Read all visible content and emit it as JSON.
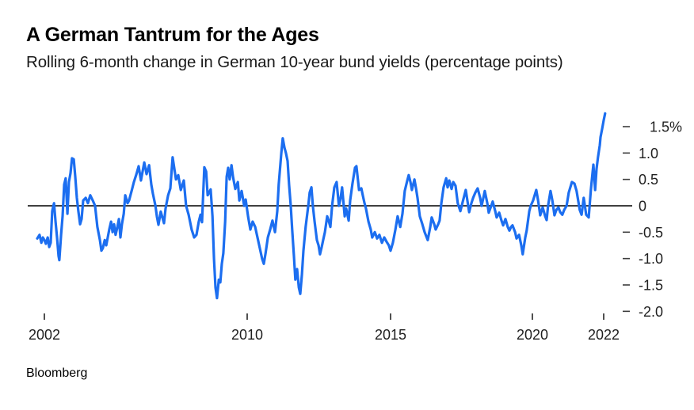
{
  "header": {
    "title": "A German Tantrum for the Ages",
    "subtitle": "Rolling 6-month change in German 10-year bund yields (percentage points)"
  },
  "source": {
    "label": "Bloomberg"
  },
  "chart_data": {
    "type": "line",
    "title": "A German Tantrum for the Ages",
    "subtitle": "Rolling 6-month change in German 10-year bund yields (percentage points)",
    "grid": false,
    "legend_position": "none",
    "zero_line": true,
    "line_color": "#1c6ef0",
    "zero_line_color": "#000000",
    "tick_color": "#3d3d3d",
    "x_axis": {
      "ticks": [
        2002,
        2010,
        2015,
        2020,
        2022
      ],
      "labels": [
        "2002",
        "2010",
        "2015",
        "2020",
        "2022"
      ],
      "range": [
        2001.7,
        2022.1
      ]
    },
    "y_axis": {
      "ticks": [
        1.5,
        1.0,
        0.5,
        0,
        -0.5,
        -1.0,
        -1.5,
        -2.0
      ],
      "labels": [
        "1.5%",
        "1.0",
        "0.5",
        "0",
        "-0.5",
        "-1.0",
        "-1.5",
        "-2.0"
      ],
      "range": [
        -2.0,
        1.75
      ],
      "unit": "percentage points"
    },
    "series": [
      {
        "name": "Rolling 6-month change in German 10-year bund yield",
        "points": [
          [
            2001.72,
            -0.62
          ],
          [
            2001.81,
            -0.55
          ],
          [
            2001.88,
            -0.7
          ],
          [
            2001.94,
            -0.6
          ],
          [
            2002.0,
            -0.65
          ],
          [
            2002.06,
            -0.72
          ],
          [
            2002.13,
            -0.6
          ],
          [
            2002.19,
            -0.78
          ],
          [
            2002.25,
            -0.7
          ],
          [
            2002.31,
            -0.1
          ],
          [
            2002.38,
            0.05
          ],
          [
            2002.44,
            -0.3
          ],
          [
            2002.5,
            -0.6
          ],
          [
            2002.56,
            -0.95
          ],
          [
            2002.59,
            -1.03
          ],
          [
            2002.66,
            -0.55
          ],
          [
            2002.72,
            -0.2
          ],
          [
            2002.78,
            0.4
          ],
          [
            2002.84,
            0.52
          ],
          [
            2002.91,
            -0.15
          ],
          [
            2002.97,
            0.45
          ],
          [
            2003.03,
            0.62
          ],
          [
            2003.09,
            0.9
          ],
          [
            2003.16,
            0.88
          ],
          [
            2003.22,
            0.55
          ],
          [
            2003.28,
            0.15
          ],
          [
            2003.34,
            -0.1
          ],
          [
            2003.41,
            -0.35
          ],
          [
            2003.47,
            -0.25
          ],
          [
            2003.53,
            0.1
          ],
          [
            2003.63,
            0.15
          ],
          [
            2003.72,
            0.05
          ],
          [
            2003.81,
            0.2
          ],
          [
            2003.91,
            0.1
          ],
          [
            2004.0,
            0.0
          ],
          [
            2004.09,
            -0.4
          ],
          [
            2004.19,
            -0.65
          ],
          [
            2004.25,
            -0.85
          ],
          [
            2004.31,
            -0.8
          ],
          [
            2004.38,
            -0.65
          ],
          [
            2004.44,
            -0.75
          ],
          [
            2004.5,
            -0.6
          ],
          [
            2004.56,
            -0.45
          ],
          [
            2004.63,
            -0.3
          ],
          [
            2004.69,
            -0.5
          ],
          [
            2004.75,
            -0.35
          ],
          [
            2004.81,
            -0.55
          ],
          [
            2004.88,
            -0.4
          ],
          [
            2004.94,
            -0.25
          ],
          [
            2005.0,
            -0.6
          ],
          [
            2005.06,
            -0.35
          ],
          [
            2005.13,
            -0.15
          ],
          [
            2005.19,
            0.2
          ],
          [
            2005.28,
            0.05
          ],
          [
            2005.34,
            0.1
          ],
          [
            2005.44,
            0.28
          ],
          [
            2005.53,
            0.45
          ],
          [
            2005.63,
            0.6
          ],
          [
            2005.72,
            0.75
          ],
          [
            2005.81,
            0.48
          ],
          [
            2005.94,
            0.82
          ],
          [
            2006.03,
            0.6
          ],
          [
            2006.13,
            0.77
          ],
          [
            2006.22,
            0.4
          ],
          [
            2006.28,
            0.23
          ],
          [
            2006.38,
            0.0
          ],
          [
            2006.44,
            -0.21
          ],
          [
            2006.5,
            -0.36
          ],
          [
            2006.59,
            -0.11
          ],
          [
            2006.72,
            -0.33
          ],
          [
            2006.78,
            -0.05
          ],
          [
            2006.88,
            0.2
          ],
          [
            2006.97,
            0.33
          ],
          [
            2007.06,
            0.92
          ],
          [
            2007.19,
            0.5
          ],
          [
            2007.28,
            0.58
          ],
          [
            2007.38,
            0.3
          ],
          [
            2007.5,
            0.48
          ],
          [
            2007.59,
            0.0
          ],
          [
            2007.69,
            -0.17
          ],
          [
            2007.81,
            -0.45
          ],
          [
            2007.91,
            -0.6
          ],
          [
            2008.0,
            -0.55
          ],
          [
            2008.09,
            -0.3
          ],
          [
            2008.16,
            -0.17
          ],
          [
            2008.22,
            -0.31
          ],
          [
            2008.31,
            0.73
          ],
          [
            2008.38,
            0.65
          ],
          [
            2008.44,
            0.2
          ],
          [
            2008.5,
            0.25
          ],
          [
            2008.56,
            0.31
          ],
          [
            2008.63,
            -0.2
          ],
          [
            2008.69,
            -1.0
          ],
          [
            2008.75,
            -1.55
          ],
          [
            2008.81,
            -1.75
          ],
          [
            2008.88,
            -1.4
          ],
          [
            2008.94,
            -1.45
          ],
          [
            2009.0,
            -1.1
          ],
          [
            2009.06,
            -0.9
          ],
          [
            2009.13,
            -0.3
          ],
          [
            2009.19,
            0.55
          ],
          [
            2009.25,
            0.72
          ],
          [
            2009.31,
            0.5
          ],
          [
            2009.38,
            0.77
          ],
          [
            2009.44,
            0.55
          ],
          [
            2009.53,
            0.32
          ],
          [
            2009.63,
            0.45
          ],
          [
            2009.69,
            0.1
          ],
          [
            2009.78,
            0.28
          ],
          [
            2009.88,
            0.0
          ],
          [
            2009.94,
            0.12
          ],
          [
            2010.03,
            -0.2
          ],
          [
            2010.11,
            -0.45
          ],
          [
            2010.19,
            -0.3
          ],
          [
            2010.28,
            -0.4
          ],
          [
            2010.36,
            -0.6
          ],
          [
            2010.44,
            -0.8
          ],
          [
            2010.52,
            -1.0
          ],
          [
            2010.58,
            -1.1
          ],
          [
            2010.64,
            -0.9
          ],
          [
            2010.72,
            -0.6
          ],
          [
            2010.8,
            -0.45
          ],
          [
            2010.88,
            -0.28
          ],
          [
            2010.97,
            -0.5
          ],
          [
            2011.05,
            -0.1
          ],
          [
            2011.1,
            0.4
          ],
          [
            2011.19,
            1.0
          ],
          [
            2011.24,
            1.28
          ],
          [
            2011.3,
            1.1
          ],
          [
            2011.35,
            1.0
          ],
          [
            2011.41,
            0.85
          ],
          [
            2011.46,
            0.4
          ],
          [
            2011.52,
            0.0
          ],
          [
            2011.57,
            -0.45
          ],
          [
            2011.63,
            -0.95
          ],
          [
            2011.68,
            -1.4
          ],
          [
            2011.74,
            -1.2
          ],
          [
            2011.8,
            -1.55
          ],
          [
            2011.85,
            -1.67
          ],
          [
            2011.91,
            -1.3
          ],
          [
            2011.96,
            -0.85
          ],
          [
            2012.04,
            -0.4
          ],
          [
            2012.13,
            0.0
          ],
          [
            2012.18,
            0.25
          ],
          [
            2012.24,
            0.35
          ],
          [
            2012.29,
            0.0
          ],
          [
            2012.35,
            -0.3
          ],
          [
            2012.43,
            -0.65
          ],
          [
            2012.49,
            -0.75
          ],
          [
            2012.54,
            -0.92
          ],
          [
            2012.6,
            -0.78
          ],
          [
            2012.65,
            -0.65
          ],
          [
            2012.71,
            -0.5
          ],
          [
            2012.79,
            -0.2
          ],
          [
            2012.85,
            -0.3
          ],
          [
            2012.9,
            -0.4
          ],
          [
            2012.96,
            0.0
          ],
          [
            2013.04,
            0.35
          ],
          [
            2013.12,
            0.45
          ],
          [
            2013.2,
            0.0
          ],
          [
            2013.26,
            0.15
          ],
          [
            2013.31,
            0.35
          ],
          [
            2013.4,
            -0.2
          ],
          [
            2013.45,
            -0.05
          ],
          [
            2013.54,
            -0.28
          ],
          [
            2013.59,
            0.1
          ],
          [
            2013.67,
            0.42
          ],
          [
            2013.76,
            0.72
          ],
          [
            2013.81,
            0.75
          ],
          [
            2013.9,
            0.3
          ],
          [
            2013.98,
            0.33
          ],
          [
            2014.03,
            0.2
          ],
          [
            2014.09,
            0.05
          ],
          [
            2014.14,
            -0.05
          ],
          [
            2014.23,
            -0.3
          ],
          [
            2014.31,
            -0.45
          ],
          [
            2014.36,
            -0.6
          ],
          [
            2014.45,
            -0.5
          ],
          [
            2014.53,
            -0.62
          ],
          [
            2014.61,
            -0.55
          ],
          [
            2014.7,
            -0.7
          ],
          [
            2014.78,
            -0.6
          ],
          [
            2014.86,
            -0.68
          ],
          [
            2014.94,
            -0.75
          ],
          [
            2015.0,
            -0.85
          ],
          [
            2015.08,
            -0.7
          ],
          [
            2015.17,
            -0.45
          ],
          [
            2015.25,
            -0.2
          ],
          [
            2015.34,
            -0.4
          ],
          [
            2015.42,
            -0.15
          ],
          [
            2015.5,
            0.28
          ],
          [
            2015.59,
            0.48
          ],
          [
            2015.64,
            0.58
          ],
          [
            2015.7,
            0.45
          ],
          [
            2015.75,
            0.3
          ],
          [
            2015.84,
            0.5
          ],
          [
            2015.89,
            0.35
          ],
          [
            2015.95,
            0.15
          ],
          [
            2016.03,
            -0.2
          ],
          [
            2016.12,
            -0.35
          ],
          [
            2016.2,
            -0.5
          ],
          [
            2016.31,
            -0.65
          ],
          [
            2016.4,
            -0.4
          ],
          [
            2016.45,
            -0.22
          ],
          [
            2016.54,
            -0.35
          ],
          [
            2016.59,
            -0.45
          ],
          [
            2016.68,
            -0.35
          ],
          [
            2016.73,
            -0.28
          ],
          [
            2016.79,
            0.05
          ],
          [
            2016.87,
            0.35
          ],
          [
            2016.96,
            0.52
          ],
          [
            2017.01,
            0.35
          ],
          [
            2017.07,
            0.48
          ],
          [
            2017.15,
            0.32
          ],
          [
            2017.21,
            0.45
          ],
          [
            2017.29,
            0.38
          ],
          [
            2017.37,
            0.05
          ],
          [
            2017.46,
            -0.1
          ],
          [
            2017.57,
            0.13
          ],
          [
            2017.65,
            0.3
          ],
          [
            2017.77,
            -0.12
          ],
          [
            2017.85,
            0.05
          ],
          [
            2017.91,
            0.15
          ],
          [
            2017.99,
            0.25
          ],
          [
            2018.07,
            0.33
          ],
          [
            2018.16,
            0.15
          ],
          [
            2018.21,
            0.0
          ],
          [
            2018.27,
            0.15
          ],
          [
            2018.32,
            0.28
          ],
          [
            2018.41,
            0.05
          ],
          [
            2018.46,
            -0.13
          ],
          [
            2018.55,
            0.0
          ],
          [
            2018.6,
            0.08
          ],
          [
            2018.69,
            -0.1
          ],
          [
            2018.74,
            -0.22
          ],
          [
            2018.83,
            -0.13
          ],
          [
            2018.91,
            -0.28
          ],
          [
            2018.97,
            -0.37
          ],
          [
            2019.05,
            -0.25
          ],
          [
            2019.13,
            -0.4
          ],
          [
            2019.19,
            -0.47
          ],
          [
            2019.25,
            -0.4
          ],
          [
            2019.3,
            -0.37
          ],
          [
            2019.39,
            -0.5
          ],
          [
            2019.44,
            -0.62
          ],
          [
            2019.53,
            -0.55
          ],
          [
            2019.61,
            -0.75
          ],
          [
            2019.66,
            -0.92
          ],
          [
            2019.75,
            -0.6
          ],
          [
            2019.8,
            -0.47
          ],
          [
            2019.89,
            -0.1
          ],
          [
            2019.94,
            0.0
          ],
          [
            2020.02,
            0.1
          ],
          [
            2020.11,
            0.3
          ],
          [
            2020.16,
            0.1
          ],
          [
            2020.22,
            -0.18
          ],
          [
            2020.29,
            -0.03
          ],
          [
            2020.36,
            -0.2
          ],
          [
            2020.4,
            -0.27
          ],
          [
            2020.44,
            0.0
          ],
          [
            2020.51,
            0.28
          ],
          [
            2020.56,
            0.1
          ],
          [
            2020.62,
            -0.18
          ],
          [
            2020.67,
            -0.08
          ],
          [
            2020.73,
            -0.03
          ],
          [
            2020.78,
            -0.12
          ],
          [
            2020.84,
            -0.17
          ],
          [
            2020.89,
            -0.08
          ],
          [
            2020.96,
            0.0
          ],
          [
            2021.02,
            0.25
          ],
          [
            2021.11,
            0.45
          ],
          [
            2021.18,
            0.42
          ],
          [
            2021.24,
            0.28
          ],
          [
            2021.33,
            -0.08
          ],
          [
            2021.38,
            -0.17
          ],
          [
            2021.44,
            0.15
          ],
          [
            2021.51,
            -0.17
          ],
          [
            2021.58,
            -0.22
          ],
          [
            2021.64,
            0.3
          ],
          [
            2021.69,
            0.65
          ],
          [
            2021.71,
            0.78
          ],
          [
            2021.76,
            0.3
          ],
          [
            2021.8,
            0.7
          ],
          [
            2021.84,
            0.92
          ],
          [
            2021.89,
            1.15
          ],
          [
            2021.91,
            1.3
          ],
          [
            2021.96,
            1.47
          ],
          [
            2022.0,
            1.62
          ],
          [
            2022.04,
            1.75
          ]
        ]
      }
    ]
  }
}
